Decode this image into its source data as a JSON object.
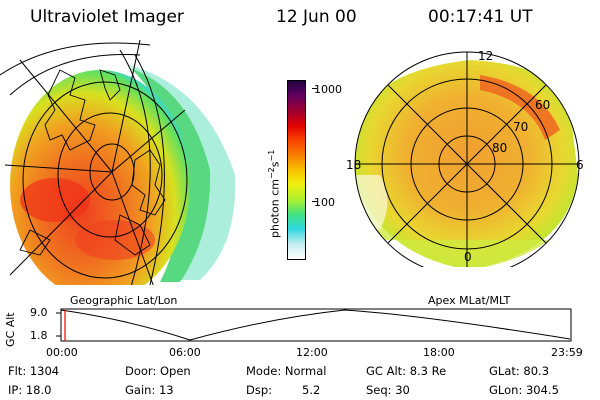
{
  "header": {
    "instrument": "Ultraviolet Imager",
    "date": "12 Jun 00",
    "time": "00:17:41 UT"
  },
  "colorbar": {
    "unit_label": "photon cm",
    "unit_exp": "−2",
    "unit_s": "s",
    "unit_exp2": "−1",
    "ticks": [
      "1000",
      "100"
    ],
    "colors": [
      "#ffffff",
      "#c8eef0",
      "#30d8e0",
      "#40e080",
      "#a8f030",
      "#f0f010",
      "#f8c000",
      "#f88000",
      "#f84000",
      "#e00000",
      "#a00030",
      "#600060",
      "#200040"
    ]
  },
  "left_panel": {
    "caption": "Geographic Lat/Lon"
  },
  "right_panel": {
    "caption": "Apex MLat/MLT",
    "mlt_labels": [
      "12",
      "18",
      "6",
      "0"
    ],
    "mlat_labels": [
      "60",
      "70",
      "80"
    ]
  },
  "altitude_plot": {
    "ylabel": "GC Alt",
    "yticks": [
      "9.0",
      "1.8"
    ],
    "xticks": [
      "00:00",
      "06:00",
      "12:00",
      "18:00",
      "23:59"
    ],
    "marker_color": "#ff0000"
  },
  "info": {
    "flt": "Flt: 1304",
    "door": "Door: Open",
    "mode": "Mode: Normal",
    "gcalt": "GC Alt: 8.3 Re",
    "glat": "GLat: 80.3",
    "ip": "IP: 18.0",
    "gain": "Gain: 13",
    "dsp_label": "Dsp:",
    "dsp_value": "5.2",
    "seq": "Seq: 30",
    "glon": "GLon: 304.5"
  }
}
